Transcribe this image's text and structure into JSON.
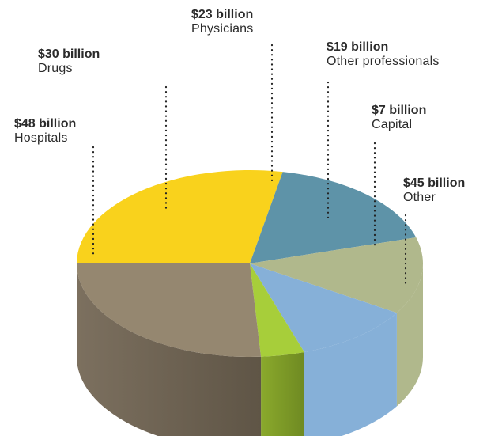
{
  "chart_data": {
    "type": "pie",
    "slices": [
      {
        "label": "Hospitals",
        "value_label": "$48 billion",
        "value": 48,
        "color": "#f9d21c"
      },
      {
        "label": "Drugs",
        "value_label": "$30 billion",
        "value": 30,
        "color": "#5e93a8"
      },
      {
        "label": "Physicians",
        "value_label": "$23 billion",
        "value": 23,
        "color": "#b0b88c"
      },
      {
        "label": "Other professionals",
        "value_label": "$19 billion",
        "value": 19,
        "color": "#86b0d8"
      },
      {
        "label": "Capital",
        "value_label": "$7 billion",
        "value": 7,
        "color": "#a7ce3a"
      },
      {
        "label": "Other",
        "value_label": "$45 billion",
        "value": 45,
        "color": "#958770"
      }
    ],
    "style": "3d",
    "legend": "none"
  }
}
